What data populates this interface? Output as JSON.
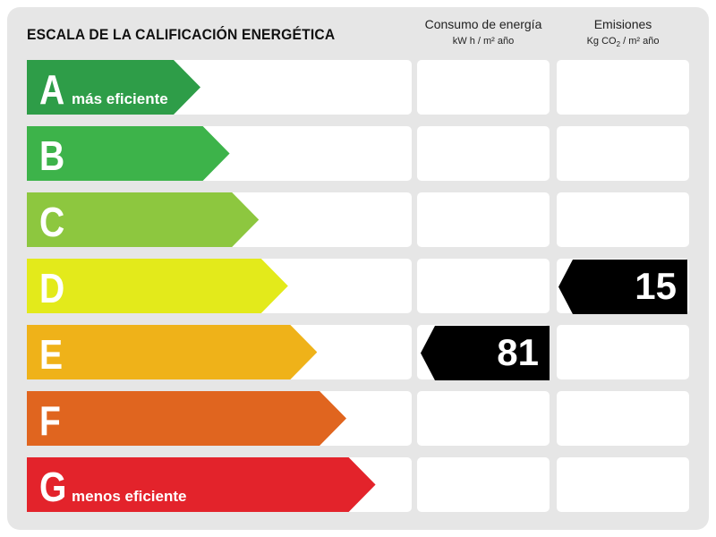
{
  "title": "ESCALA DE LA CALIFICACIÓN ENERGÉTICA",
  "columns": {
    "energy": {
      "label": "Consumo de energía",
      "unit": "kW h / m² año"
    },
    "emissions": {
      "label": "Emisiones",
      "unit_prefix": "Kg CO",
      "unit_sub": "2",
      "unit_suffix": " / m² año"
    }
  },
  "ratings": [
    {
      "letter": "A",
      "note": "más eficiente",
      "color": "#2e9d48"
    },
    {
      "letter": "B",
      "note": "",
      "color": "#3db34a"
    },
    {
      "letter": "C",
      "note": "",
      "color": "#8dc73f"
    },
    {
      "letter": "D",
      "note": "",
      "color": "#e3ea1b"
    },
    {
      "letter": "E",
      "note": "",
      "color": "#efb219"
    },
    {
      "letter": "F",
      "note": "",
      "color": "#e0651f"
    },
    {
      "letter": "G",
      "note": "menos eficiente",
      "color": "#e3232b"
    }
  ],
  "energy_value": {
    "value": "81",
    "rating": "E"
  },
  "emissions_value": {
    "value": "15",
    "rating": "D"
  }
}
